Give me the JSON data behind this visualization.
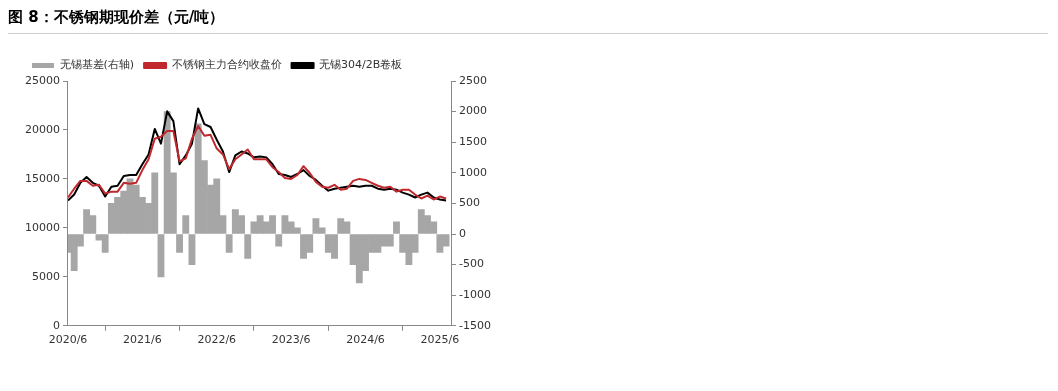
{
  "chart_data": {
    "type": "line",
    "title": "图 8：不锈钢期现价差（元/吨）",
    "x": [
      "2020-06",
      "2020-07",
      "2020-08",
      "2020-09",
      "2020-10",
      "2020-11",
      "2020-12",
      "2021-01",
      "2021-02",
      "2021-03",
      "2021-04",
      "2021-05",
      "2021-06",
      "2021-07",
      "2021-08",
      "2021-09",
      "2021-10",
      "2021-11",
      "2021-12",
      "2022-01",
      "2022-02",
      "2022-03",
      "2022-04",
      "2022-05",
      "2022-06",
      "2022-07",
      "2022-08",
      "2022-09",
      "2022-10",
      "2022-11",
      "2022-12",
      "2023-01",
      "2023-02",
      "2023-03",
      "2023-04",
      "2023-05",
      "2023-06",
      "2023-07",
      "2023-08",
      "2023-09",
      "2023-10",
      "2023-11",
      "2023-12",
      "2024-01",
      "2024-02",
      "2024-03",
      "2024-04",
      "2024-05",
      "2024-06",
      "2024-07",
      "2024-08",
      "2024-09",
      "2024-10",
      "2024-11",
      "2024-12",
      "2025-01",
      "2025-02",
      "2025-03",
      "2025-04",
      "2025-05",
      "2025-06",
      "2025-07"
    ],
    "series": [
      {
        "name": "无锡基差(右轴)",
        "type": "bar",
        "axis": "y2",
        "color": "#a6a6a6",
        "values": [
          -300,
          -600,
          -200,
          400,
          300,
          -100,
          -300,
          500,
          600,
          700,
          900,
          800,
          600,
          500,
          1000,
          -700,
          2000,
          1000,
          -300,
          300,
          -500,
          1800,
          1200,
          800,
          900,
          300,
          -300,
          400,
          300,
          -400,
          200,
          300,
          200,
          300,
          -200,
          300,
          200,
          100,
          -400,
          -300,
          250,
          100,
          -300,
          -400,
          250,
          200,
          -500,
          -800,
          -600,
          -300,
          -300,
          -200,
          -200,
          200,
          -300,
          -500,
          -300,
          400,
          300,
          200,
          -300,
          -200
        ]
      },
      {
        "name": "不锈钢主力合约收盘价",
        "color": "#c0282d",
        "values": [
          13100,
          14000,
          14800,
          14800,
          14300,
          14400,
          13500,
          13700,
          13700,
          14600,
          14500,
          14600,
          15900,
          17000,
          19100,
          19300,
          19900,
          19900,
          16800,
          17100,
          19100,
          20400,
          19400,
          19500,
          18100,
          17500,
          16000,
          17000,
          17500,
          18000,
          17000,
          17000,
          17000,
          16200,
          15700,
          15100,
          15000,
          15400,
          16300,
          15600,
          14700,
          14200,
          14100,
          14400,
          13900,
          14000,
          14800,
          15000,
          14900,
          14600,
          14300,
          14100,
          14200,
          13700,
          13900,
          13900,
          13400,
          13000,
          13300,
          12900,
          13200,
          13000
        ]
      },
      {
        "name": "无锡304/2B卷板",
        "color": "#000000",
        "values": [
          12800,
          13400,
          14600,
          15200,
          14600,
          14300,
          13200,
          14200,
          14300,
          15300,
          15400,
          15400,
          16500,
          17500,
          20100,
          18600,
          21900,
          20900,
          16500,
          17400,
          18600,
          22200,
          20600,
          20300,
          19000,
          17800,
          15700,
          17400,
          17800,
          17600,
          17200,
          17300,
          17200,
          16500,
          15500,
          15400,
          15200,
          15500,
          15900,
          15300,
          14900,
          14300,
          13800,
          14000,
          14100,
          14200,
          14300,
          14200,
          14300,
          14300,
          14000,
          13900,
          14000,
          13900,
          13600,
          13400,
          13100,
          13400,
          13600,
          13100,
          12900,
          12800
        ]
      }
    ],
    "xlim": [
      "2020-06",
      "2025-07"
    ],
    "xticks": [
      {
        "value": "2020-06",
        "label": "2020/6"
      },
      {
        "value": "2021-06",
        "label": "2021/6"
      },
      {
        "value": "2022-06",
        "label": "2022/6"
      },
      {
        "value": "2023-06",
        "label": "2023/6"
      },
      {
        "value": "2024-06",
        "label": "2024/6"
      },
      {
        "value": "2025-06",
        "label": "2025/6"
      }
    ],
    "ylim": [
      0,
      25000
    ],
    "yticks": [
      0,
      5000,
      10000,
      15000,
      20000,
      25000
    ],
    "y2lim": [
      -1500,
      2500
    ],
    "y2ticks": [
      -1500,
      -1000,
      -500,
      0,
      500,
      1000,
      1500,
      2000,
      2500
    ],
    "grid": false,
    "legend": "top",
    "marker": "none",
    "line_style": "solid"
  }
}
